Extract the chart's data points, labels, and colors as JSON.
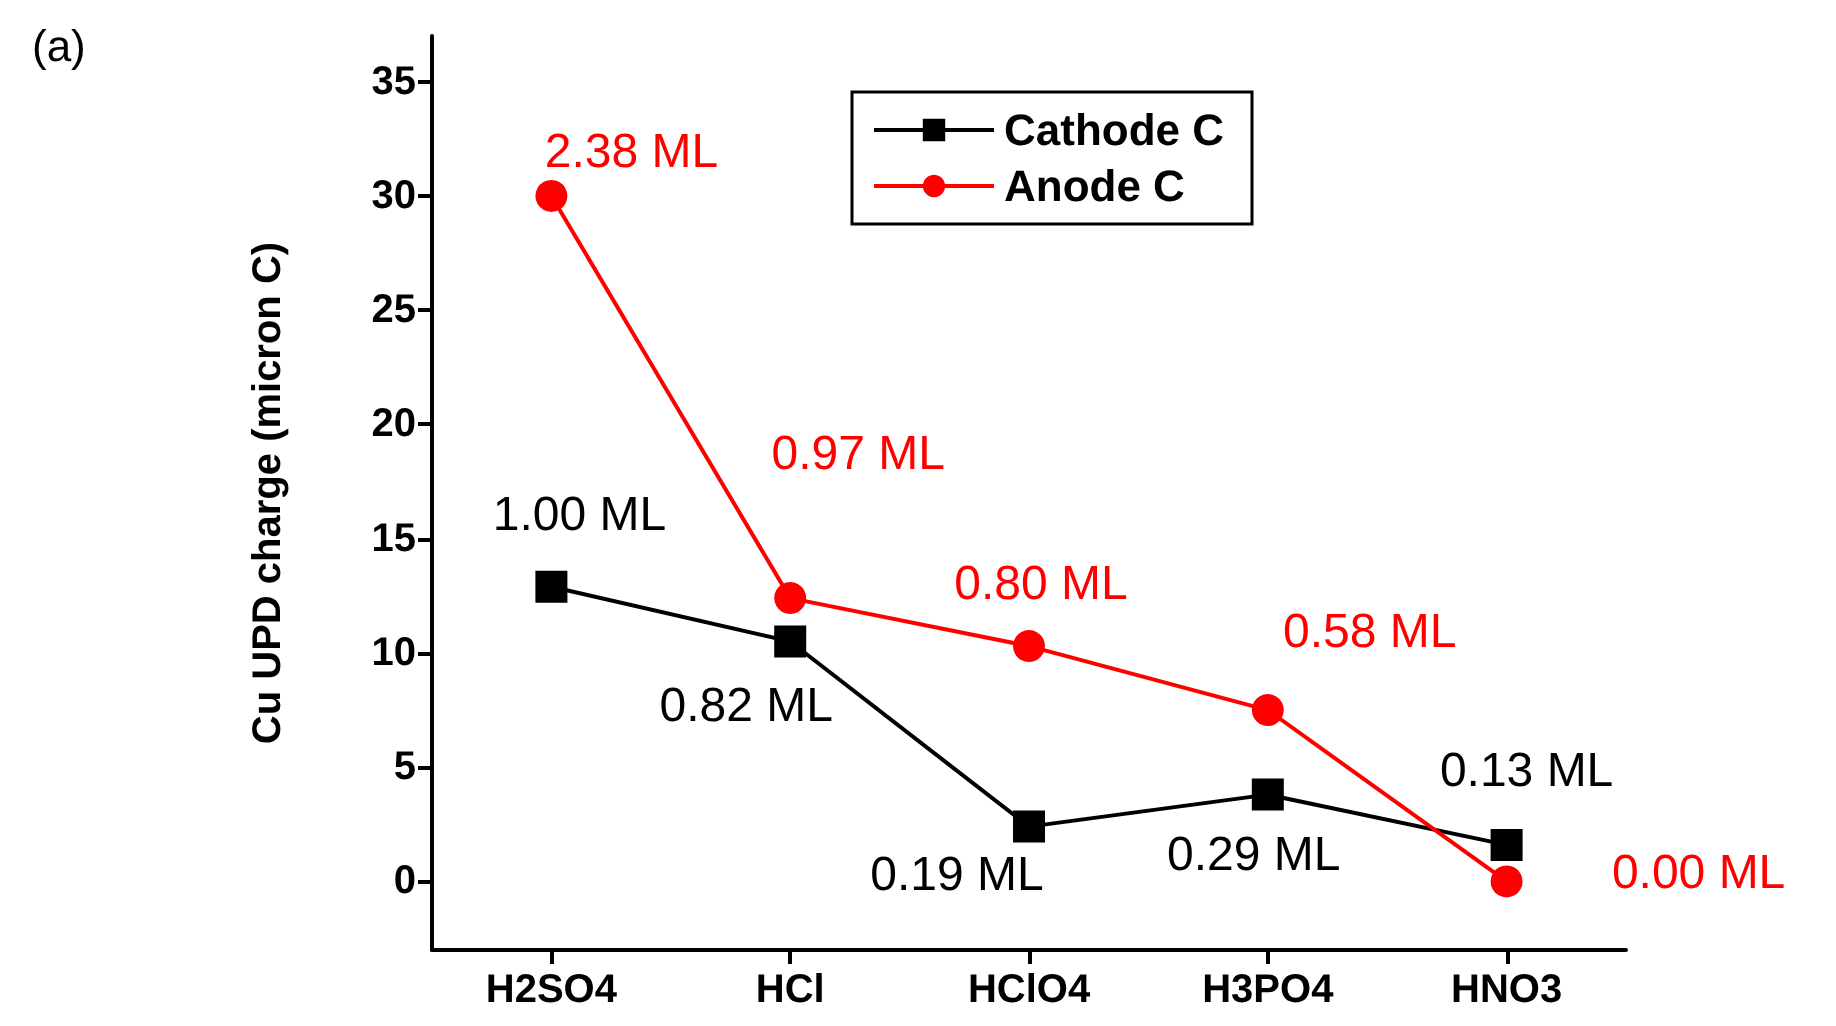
{
  "chart_data": {
    "type": "line",
    "ylabel": "Cu UPD charge (micron C)",
    "annotations": [
      "(a)",
      {
        "text": "1.00 ML",
        "x": "H2SO4",
        "y": 12.9
      },
      {
        "text": "0.82 ML",
        "x": "HCl",
        "y": 10.5
      },
      {
        "text": "0.19 ML",
        "x": "HClO4",
        "y": 2.4
      },
      {
        "text": "0.29 ML",
        "x": "H3PO4",
        "y": 3.8
      },
      {
        "text": "0.13 ML",
        "x": "HNO3",
        "y": 1.6
      },
      {
        "text": "2.38 ML",
        "x": "H2SO4",
        "y": 30
      },
      {
        "text": "0.97 ML",
        "x": "HCl",
        "y": 12.4
      },
      {
        "text": "0.80 ML",
        "x": "HClO4",
        "y": 10.3
      },
      {
        "text": "0.58 ML",
        "x": "H3PO4",
        "y": 7.5
      },
      {
        "text": "0.00 ML",
        "x": "HNO3",
        "y": 0
      }
    ],
    "categories": [
      "H2SO4",
      "HCl",
      "HClO4",
      "H3PO4",
      "HNO3"
    ],
    "series": [
      {
        "name": "Cathode C",
        "color": "#000000",
        "marker": "square",
        "values": [
          12.9,
          10.5,
          2.4,
          3.8,
          1.6
        ]
      },
      {
        "name": "Anode C",
        "color": "#ff0000",
        "marker": "circle",
        "values": [
          30,
          12.4,
          10.3,
          7.5,
          0
        ]
      }
    ],
    "ylim": [
      -3,
      37
    ],
    "yticks": [
      0,
      5,
      10,
      15,
      20,
      25,
      30,
      35
    ],
    "grid": false,
    "legend": "top",
    "line_style": "solid"
  }
}
